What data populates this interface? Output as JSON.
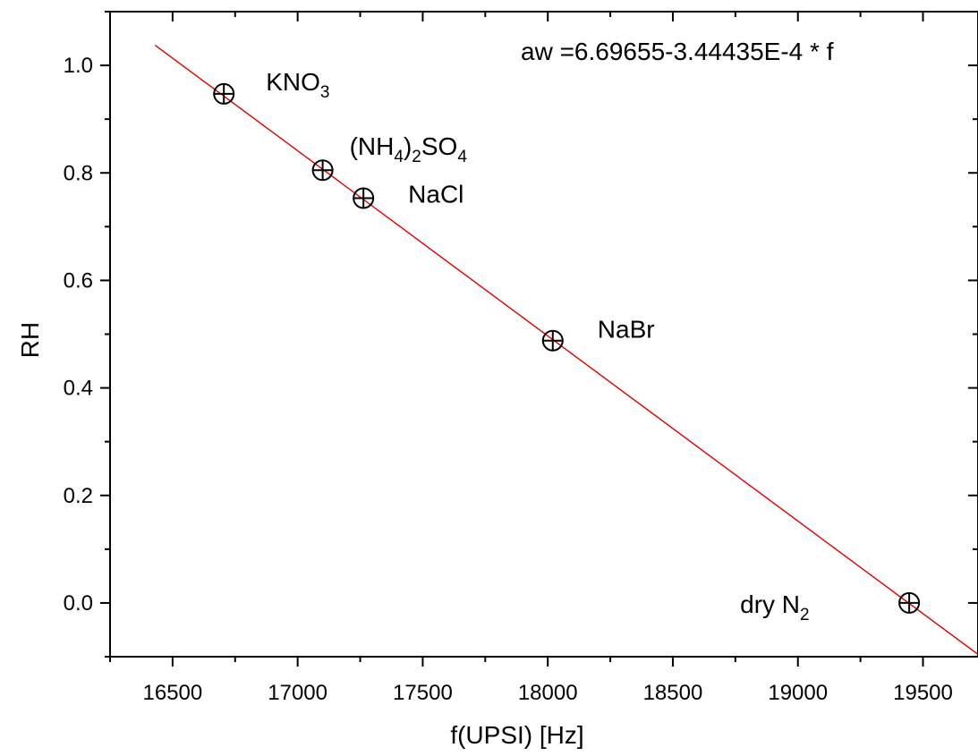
{
  "chart_data": {
    "type": "scatter",
    "xlabel": "f(UPSI) [Hz]",
    "ylabel": "RH",
    "xlim": [
      16250,
      19720
    ],
    "ylim": [
      -0.1,
      1.1
    ],
    "x_ticks": [
      16500,
      17000,
      17500,
      18000,
      18500,
      19000,
      19500
    ],
    "x_tick_labels": [
      "16500",
      "17000",
      "17500",
      "18000",
      "18500",
      "19000",
      "19500"
    ],
    "y_ticks": [
      0.0,
      0.2,
      0.4,
      0.6,
      0.8,
      1.0
    ],
    "y_tick_labels": [
      "0.0",
      "0.2",
      "0.4",
      "0.6",
      "0.8",
      "1.0"
    ],
    "grid": false,
    "series": [
      {
        "marker": "circle-plus",
        "color": "#000000",
        "points": [
          {
            "x": 16705,
            "y": 0.947,
            "label": "KNO",
            "sub": "3",
            "sub_pos": "end"
          },
          {
            "x": 17100,
            "y": 0.805,
            "label": "(NH4)2SO4",
            "label_parts": [
              "(NH",
              "4",
              ")",
              "2",
              "SO",
              "4"
            ]
          },
          {
            "x": 17263,
            "y": 0.753,
            "label": "NaCl"
          },
          {
            "x": 18020,
            "y": 0.488,
            "label": "NaBr"
          },
          {
            "x": 19445,
            "y": 0.0,
            "label": "dry N",
            "sub": "2",
            "sub_pos": "end"
          }
        ]
      }
    ],
    "fit": {
      "type": "linear",
      "color": "#e00000",
      "intercept": 6.69655,
      "slope": -0.000344435,
      "x_range": [
        16430,
        19720
      ],
      "equation": "aw =6.69655-3.44435E-4 * f"
    }
  }
}
